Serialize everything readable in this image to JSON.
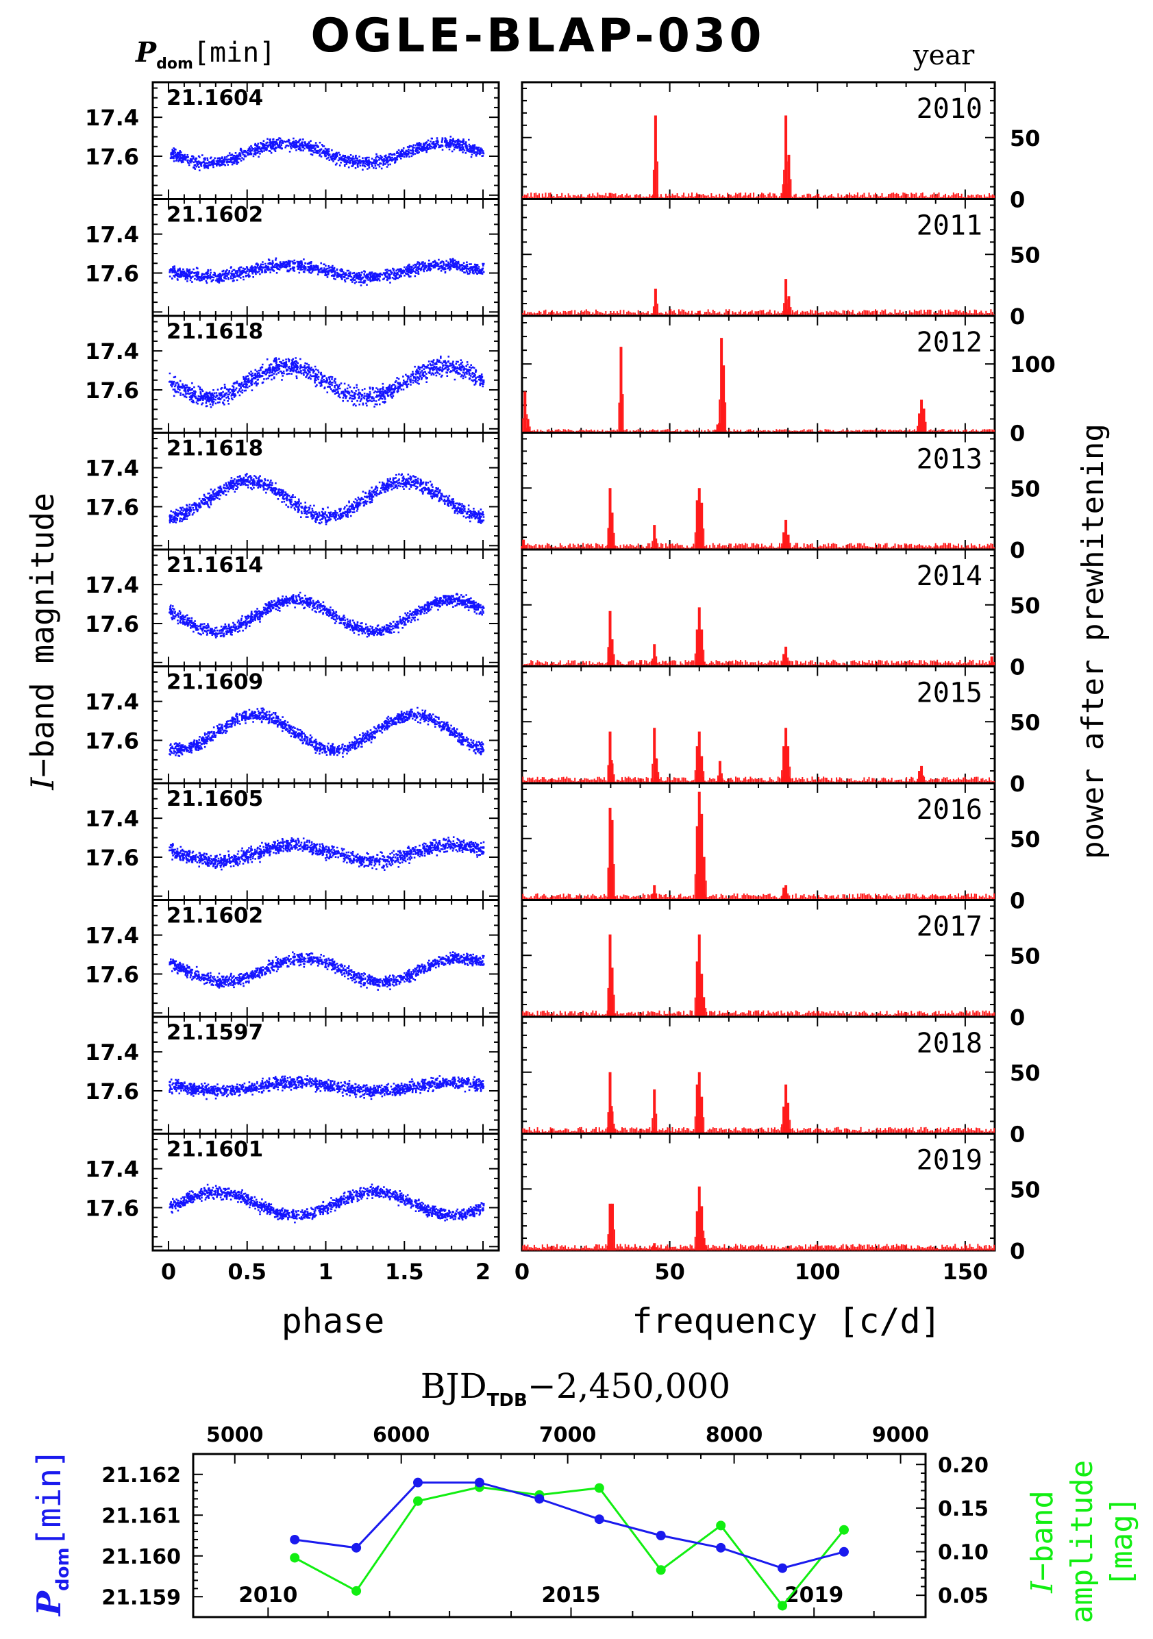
{
  "title": "OGLE-BLAP-030",
  "header": {
    "pdom_sym": "P",
    "pdom_sub": "dom",
    "pdom_unit": "[min]",
    "year_label": "year"
  },
  "lightcurve_axis": {
    "ylabel_italic": "I",
    "ylabel_rest": "−band magnitude",
    "xlabel": "phase",
    "yticks": [
      "17.4",
      "17.6"
    ],
    "xticks": [
      "0",
      "0.5",
      "1",
      "1.5",
      "2"
    ]
  },
  "periodogram_axis": {
    "xlabel": "frequency [c/d]",
    "ylabel": "power after prewhitening",
    "xticks": [
      "0",
      "50",
      "100",
      "150"
    ]
  },
  "colors": {
    "lightcurve": "#1414ff",
    "periodogram": "#ff1a1a",
    "period": "#1a1aee",
    "amplitude": "#11ee11",
    "axis": "#000000"
  },
  "bottom": {
    "top_axis_label_main": "BJD",
    "top_axis_label_sub": "TDB",
    "top_axis_label_rest": "−2,450,000",
    "top_ticks": [
      "5000",
      "6000",
      "7000",
      "8000",
      "9000"
    ],
    "left_label_sym": "P",
    "left_label_sub": "dom",
    "left_label_unit": "[min]",
    "left_ticks": [
      "21.162",
      "21.161",
      "21.160",
      "21.159"
    ],
    "right_label_line1_italic": "I",
    "right_label_line1_rest": "−band",
    "right_label_line2": "amplitude",
    "right_label_line3": "[mag]",
    "right_ticks": [
      "0.20",
      "0.15",
      "0.10",
      "0.05"
    ],
    "year_labels": [
      "2010",
      "2015",
      "2019"
    ]
  },
  "chart_data": [
    {
      "type": "scatter",
      "name": "phased light curves",
      "xlabel": "phase",
      "ylabel": "I-band magnitude",
      "xlim": [
        -0.1,
        2.1
      ],
      "ylim": [
        17.82,
        17.22
      ],
      "panels": [
        {
          "year": "2010",
          "period_min": "21.1604",
          "mean": 17.585,
          "amplitude": 0.05,
          "phase_of_min": 0.25,
          "scatter": 0.03
        },
        {
          "year": "2011",
          "period_min": "21.1602",
          "mean": 17.59,
          "amplitude": 0.03,
          "phase_of_min": 0.25,
          "scatter": 0.03
        },
        {
          "year": "2012",
          "period_min": "21.1618",
          "mean": 17.56,
          "amplitude": 0.08,
          "phase_of_min": 0.25,
          "scatter": 0.045
        },
        {
          "year": "2013",
          "period_min": "21.1618",
          "mean": 17.56,
          "amplitude": 0.09,
          "phase_of_min": 0.0,
          "scatter": 0.035
        },
        {
          "year": "2014",
          "period_min": "21.1614",
          "mean": 17.56,
          "amplitude": 0.08,
          "phase_of_min": 0.3,
          "scatter": 0.03
        },
        {
          "year": "2015",
          "period_min": "21.1609",
          "mean": 17.56,
          "amplitude": 0.09,
          "phase_of_min": 0.05,
          "scatter": 0.03
        },
        {
          "year": "2016",
          "period_min": "21.1605",
          "mean": 17.58,
          "amplitude": 0.04,
          "phase_of_min": 0.3,
          "scatter": 0.035
        },
        {
          "year": "2017",
          "period_min": "21.1602",
          "mean": 17.58,
          "amplitude": 0.06,
          "phase_of_min": 0.35,
          "scatter": 0.03
        },
        {
          "year": "2018",
          "period_min": "21.1597",
          "mean": 17.58,
          "amplitude": 0.02,
          "phase_of_min": 0.3,
          "scatter": 0.03
        },
        {
          "year": "2019",
          "period_min": "21.1601",
          "mean": 17.58,
          "amplitude": 0.06,
          "phase_of_min": 0.8,
          "scatter": 0.03
        }
      ]
    },
    {
      "type": "bar",
      "name": "periodograms after prewhitening",
      "xlabel": "frequency [c/d]",
      "ylabel": "power after prewhitening",
      "xlim": [
        0,
        160
      ],
      "panels": [
        {
          "year": "2010",
          "ymax": 95,
          "ticks": [
            0,
            50
          ],
          "noise": 3,
          "peaks": [
            [
              29.8,
              5
            ],
            [
              45.2,
              68
            ],
            [
              59.3,
              4
            ],
            [
              88.5,
              12
            ],
            [
              89.3,
              68
            ],
            [
              90.3,
              36
            ]
          ]
        },
        {
          "year": "2011",
          "ymax": 95,
          "ticks": [
            0,
            50
          ],
          "noise": 3,
          "peaks": [
            [
              45.2,
              22
            ],
            [
              59.8,
              4
            ],
            [
              89.3,
              30
            ],
            [
              90.3,
              16
            ]
          ]
        },
        {
          "year": "2012",
          "ymax": 170,
          "ticks": [
            0,
            100
          ],
          "noise": 3,
          "peaks": [
            [
              1.0,
              60
            ],
            [
              2.0,
              20
            ],
            [
              66.2,
              12
            ],
            [
              66.8,
              14
            ],
            [
              67.5,
              138
            ],
            [
              68.2,
              98
            ],
            [
              33.5,
              125
            ],
            [
              134.5,
              28
            ],
            [
              135.2,
              48
            ],
            [
              136.0,
              35
            ]
          ]
        },
        {
          "year": "2013",
          "ymax": 95,
          "ticks": [
            0,
            50
          ],
          "noise": 3,
          "peaks": [
            [
              0.5,
              8
            ],
            [
              29.8,
              50
            ],
            [
              30.5,
              30
            ],
            [
              44.8,
              20
            ],
            [
              59.3,
              40
            ],
            [
              60.0,
              50
            ],
            [
              60.8,
              38
            ],
            [
              88.6,
              14
            ],
            [
              89.3,
              24
            ],
            [
              90.1,
              12
            ]
          ]
        },
        {
          "year": "2014",
          "ymax": 95,
          "ticks": [
            0,
            50
          ],
          "noise": 3,
          "peaks": [
            [
              29.8,
              45
            ],
            [
              30.5,
              22
            ],
            [
              44.8,
              18
            ],
            [
              59.3,
              30
            ],
            [
              60.0,
              48
            ],
            [
              60.8,
              30
            ],
            [
              88.6,
              10
            ],
            [
              89.3,
              16
            ],
            [
              159.0,
              8
            ]
          ]
        },
        {
          "year": "2015",
          "ymax": 95,
          "ticks": [
            0,
            50
          ],
          "noise": 3,
          "peaks": [
            [
              29.8,
              42
            ],
            [
              30.5,
              16
            ],
            [
              44.8,
              45
            ],
            [
              45.5,
              20
            ],
            [
              59.3,
              30
            ],
            [
              60.0,
              42
            ],
            [
              60.8,
              22
            ],
            [
              67.0,
              18
            ],
            [
              88.6,
              30
            ],
            [
              89.3,
              45
            ],
            [
              90.0,
              30
            ],
            [
              134.5,
              10
            ],
            [
              135.2,
              14
            ]
          ]
        },
        {
          "year": "2016",
          "ymax": 95,
          "ticks": [
            0,
            50
          ],
          "noise": 3,
          "peaks": [
            [
              29.8,
              75
            ],
            [
              30.5,
              65
            ],
            [
              44.8,
              12
            ],
            [
              59.3,
              60
            ],
            [
              60.0,
              88
            ],
            [
              60.8,
              70
            ],
            [
              61.6,
              35
            ],
            [
              88.6,
              10
            ],
            [
              89.3,
              12
            ]
          ]
        },
        {
          "year": "2017",
          "ymax": 95,
          "ticks": [
            0,
            50
          ],
          "noise": 3,
          "peaks": [
            [
              29.8,
              67
            ],
            [
              30.5,
              40
            ],
            [
              59.3,
              45
            ],
            [
              60.0,
              67
            ],
            [
              60.8,
              35
            ],
            [
              61.5,
              16
            ]
          ]
        },
        {
          "year": "2018",
          "ymax": 95,
          "ticks": [
            0,
            50
          ],
          "noise": 3,
          "peaks": [
            [
              29.8,
              50
            ],
            [
              30.5,
              18
            ],
            [
              44.8,
              36
            ],
            [
              59.3,
              40
            ],
            [
              60.0,
              50
            ],
            [
              60.8,
              30
            ],
            [
              88.6,
              22
            ],
            [
              89.3,
              40
            ],
            [
              90.0,
              25
            ]
          ]
        },
        {
          "year": "2019",
          "ymax": 95,
          "ticks": [
            0,
            50
          ],
          "noise": 3,
          "peaks": [
            [
              29.8,
              38
            ],
            [
              30.6,
              38
            ],
            [
              44.8,
              6
            ],
            [
              59.3,
              32
            ],
            [
              60.0,
              52
            ],
            [
              60.8,
              36
            ],
            [
              61.6,
              10
            ]
          ]
        }
      ]
    },
    {
      "type": "line",
      "name": "period and amplitude evolution",
      "xlabel": "BJD_TDB − 2,450,000",
      "x_range": [
        4750,
        9150
      ],
      "y_left_label": "P_dom [min]",
      "y_left_range": [
        21.1585,
        21.1625
      ],
      "y_right_label": "I-band amplitude [mag]",
      "y_right_range": [
        0.025,
        0.212
      ],
      "series": [
        {
          "name": "P_dom",
          "axis": "left",
          "x": [
            5360,
            5730,
            6100,
            6470,
            6830,
            7190,
            7560,
            7920,
            8290,
            8660
          ],
          "y": [
            21.1604,
            21.1602,
            21.1618,
            21.1618,
            21.1614,
            21.1609,
            21.1605,
            21.1602,
            21.1597,
            21.1601
          ]
        },
        {
          "name": "I-band amplitude",
          "axis": "right",
          "x": [
            5360,
            5730,
            6100,
            6470,
            6830,
            7190,
            7560,
            7920,
            8290,
            8660
          ],
          "y": [
            0.093,
            0.055,
            0.158,
            0.174,
            0.165,
            0.173,
            0.079,
            0.13,
            0.038,
            0.125
          ]
        }
      ]
    }
  ]
}
